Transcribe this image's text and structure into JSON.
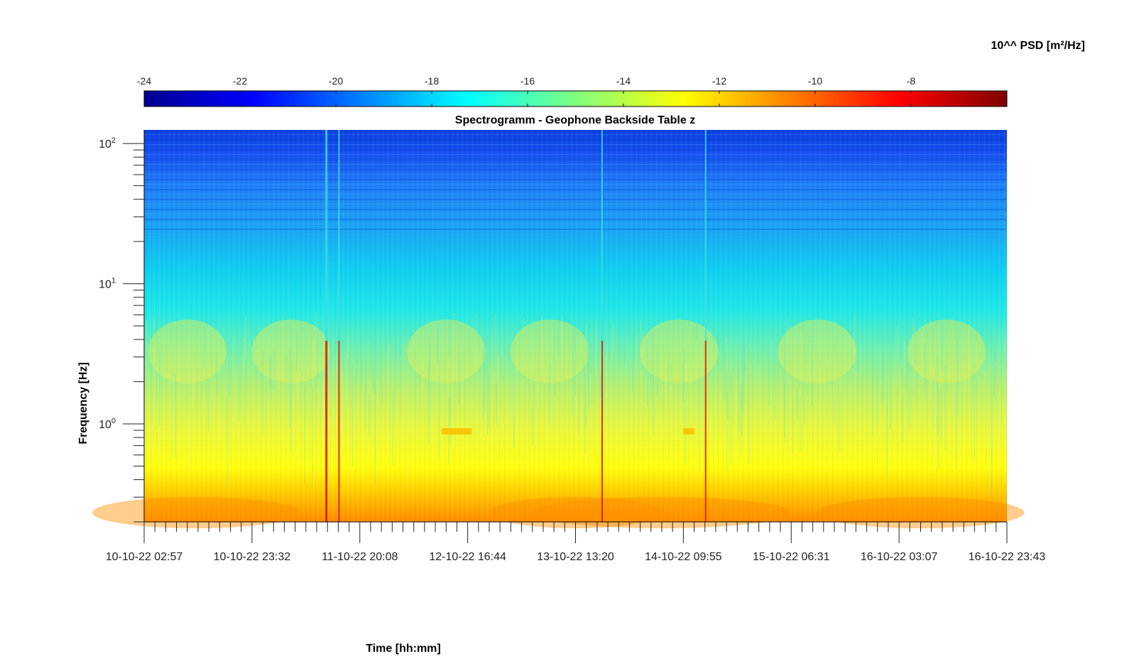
{
  "chart_data": {
    "type": "heatmap",
    "title": "Spectrogramm - Geophone Backside Table z",
    "xlabel": "Time [hh:mm]",
    "ylabel": "Frequency [Hz]",
    "x_ticks": [
      "10-10-22 02:57",
      "10-10-22 23:32",
      "11-10-22 20:08",
      "12-10-22 16:44",
      "13-10-22 13:20",
      "14-10-22 09:55",
      "15-10-22 06:31",
      "16-10-22 03:07",
      "16-10-22 23:43"
    ],
    "y_scale": "log",
    "y_ticks": [
      {
        "base": "10",
        "exp": "0"
      },
      {
        "base": "10",
        "exp": "1"
      },
      {
        "base": "10",
        "exp": "2"
      }
    ],
    "ylim": [
      0.2,
      125
    ],
    "colorbar": {
      "label": "10^^ PSD [m²/Hz]",
      "location": "top",
      "ticks": [
        "-24",
        "-22",
        "-20",
        "-18",
        "-16",
        "-14",
        "-12",
        "-10",
        "-8"
      ],
      "range": [
        -24,
        -6
      ],
      "colormap": "jet"
    },
    "transient_events_x_fraction": [
      0.21,
      0.225,
      0.53,
      0.65
    ],
    "grid": false
  }
}
